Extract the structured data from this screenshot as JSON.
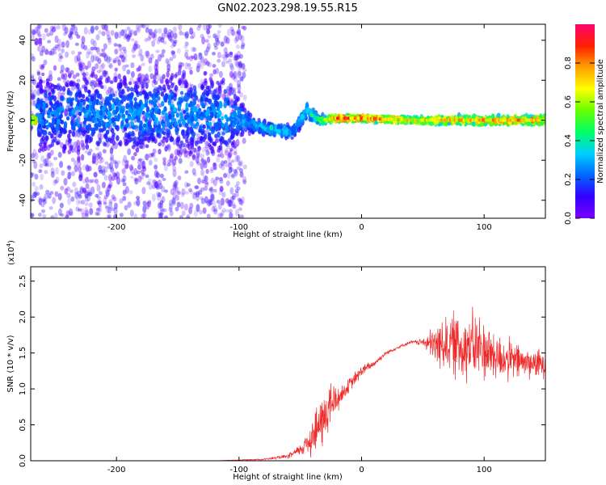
{
  "title": "GN02.2023.298.19.55.R15",
  "colors": {
    "axis": "#000000",
    "snr_line": "#ee2a2a",
    "colormap": [
      "#7a00ff",
      "#3300ff",
      "#0066ff",
      "#00d0ff",
      "#00ff66",
      "#66ff00",
      "#ffff00",
      "#ffa000",
      "#ff2000",
      "#ff0070"
    ]
  },
  "chart_data": [
    {
      "type": "heatmap",
      "xlabel": "Height of straight line (km)",
      "ylabel": "Frequency (Hz)",
      "xlim": [
        -270,
        150
      ],
      "ylim": [
        -49,
        48
      ],
      "xticks": [
        -200,
        -100,
        0,
        100
      ],
      "xtick_labels": [
        "-200",
        "-100",
        "0",
        "100"
      ],
      "yticks": [
        -40,
        -20,
        0,
        20,
        40
      ],
      "ytick_labels": [
        "-40",
        "-20",
        "0",
        "20",
        "40"
      ],
      "colorbar": {
        "label": "Normalized spectral amplitude",
        "range": [
          0,
          1
        ],
        "ticks": [
          0.0,
          0.2,
          0.4,
          0.6,
          0.8
        ],
        "tick_labels": [
          "0.0",
          "0.2",
          "0.4",
          "0.6",
          "0.8"
        ]
      },
      "ridge": [
        {
          "x": -265,
          "f": 3,
          "amp": 0.25,
          "spread": 30
        },
        {
          "x": -200,
          "f": 3,
          "amp": 0.3,
          "spread": 30
        },
        {
          "x": -150,
          "f": 3,
          "amp": 0.3,
          "spread": 30
        },
        {
          "x": -110,
          "f": 2,
          "amp": 0.3,
          "spread": 30
        },
        {
          "x": -95,
          "f": 0,
          "amp": 0.3,
          "spread": 8
        },
        {
          "x": -85,
          "f": -3,
          "amp": 0.35,
          "spread": 4
        },
        {
          "x": -70,
          "f": -5,
          "amp": 0.4,
          "spread": 4
        },
        {
          "x": -55,
          "f": -6,
          "amp": 0.3,
          "spread": 4
        },
        {
          "x": -45,
          "f": 5,
          "amp": 0.4,
          "spread": 6
        },
        {
          "x": -35,
          "f": 0,
          "amp": 0.5,
          "spread": 3
        },
        {
          "x": -20,
          "f": 1,
          "amp": 0.85,
          "spread": 2
        },
        {
          "x": 0,
          "f": 1,
          "amp": 0.85,
          "spread": 2
        },
        {
          "x": 40,
          "f": 0,
          "amp": 0.7,
          "spread": 2
        },
        {
          "x": 80,
          "f": 0,
          "amp": 0.75,
          "spread": 3
        },
        {
          "x": 120,
          "f": 0,
          "amp": 0.8,
          "spread": 3
        },
        {
          "x": 150,
          "f": 0,
          "amp": 0.75,
          "spread": 3
        }
      ]
    },
    {
      "type": "line",
      "xlabel": "Height of straight line (km)",
      "ylabel": "SNR (10 * v/v)",
      "scale_label": "(x10",
      "scale_exp": "4",
      "scale_close": ")",
      "xlim": [
        -270,
        150
      ],
      "ylim": [
        0,
        2.7
      ],
      "xticks": [
        -200,
        -100,
        0,
        100
      ],
      "xtick_labels": [
        "-200",
        "-100",
        "0",
        "100"
      ],
      "yticks": [
        0.0,
        0.5,
        1.0,
        1.5,
        2.0,
        2.5
      ],
      "ytick_labels": [
        "0.0",
        "0.5",
        "1.0",
        "1.5",
        "2.0",
        "2.5"
      ],
      "series": [
        {
          "x": [
            -270,
            -200,
            -120,
            -80,
            -60,
            -50,
            -40,
            -30,
            -25,
            -20,
            -15,
            -10,
            -5,
            0,
            10,
            20,
            30,
            40,
            50,
            60,
            70,
            80,
            90,
            100,
            110,
            120,
            130,
            140,
            150
          ],
          "y": [
            0.0,
            0.0,
            0.0,
            0.02,
            0.06,
            0.15,
            0.35,
            0.6,
            0.8,
            0.85,
            0.95,
            1.05,
            1.15,
            1.25,
            1.35,
            1.5,
            1.58,
            1.65,
            1.65,
            1.6,
            1.65,
            1.6,
            1.6,
            1.55,
            1.45,
            1.4,
            1.38,
            1.35,
            1.35
          ],
          "noise": [
            0.0,
            0.0,
            0.0,
            0.01,
            0.03,
            0.08,
            0.3,
            0.4,
            0.35,
            0.2,
            0.12,
            0.1,
            0.1,
            0.08,
            0.05,
            0.03,
            0.02,
            0.02,
            0.05,
            0.3,
            0.4,
            0.5,
            0.5,
            0.45,
            0.35,
            0.3,
            0.25,
            0.2,
            0.2
          ]
        }
      ]
    }
  ]
}
